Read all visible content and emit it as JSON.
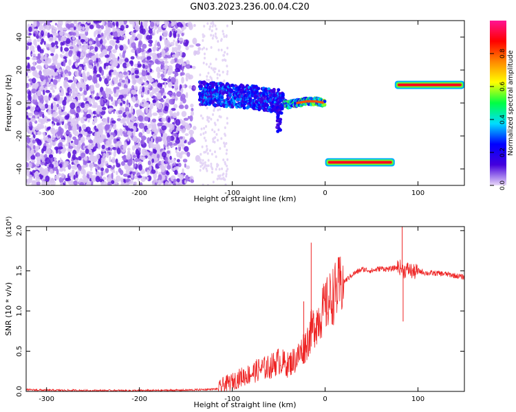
{
  "title": "GN03.2023.236.00.04.C20",
  "chart_data": [
    {
      "type": "heatmap",
      "xlabel": "Height of straight line (km)",
      "ylabel": "Frequency (Hz)",
      "xlim": [
        -322,
        150
      ],
      "ylim": [
        -50,
        50
      ],
      "xticks": [
        -300,
        -200,
        -100,
        0,
        100
      ],
      "yticks": [
        -40,
        -20,
        0,
        20,
        40
      ],
      "colorbar": {
        "label": "Normalized spectral amplitude",
        "range": [
          0,
          1
        ],
        "ticks": [
          0.0,
          0.2,
          0.4,
          0.6,
          0.8
        ],
        "tick_labels": [
          "0.0",
          "0.2",
          "0.4",
          "0.6",
          "0.8"
        ],
        "colormap": [
          "#e8d8f8",
          "#4400dd",
          "#0000ff",
          "#00ddff",
          "#00ff44",
          "#ffff00",
          "#ff8800",
          "#ff0000",
          "#ff1493"
        ]
      },
      "features": [
        {
          "name": "noise",
          "x_range": [
            -322,
            -135
          ],
          "freq_range": [
            -50,
            50
          ],
          "amplitude": 0.05
        },
        {
          "name": "main-trace",
          "points": [
            [
              -135,
              6
            ],
            [
              -110,
              5
            ],
            [
              -90,
              4
            ],
            [
              -70,
              3
            ],
            [
              -50,
              1
            ],
            [
              -40,
              -1
            ],
            [
              -30,
              0
            ],
            [
              -20,
              1
            ],
            [
              -10,
              1
            ],
            [
              0,
              0
            ]
          ],
          "amplitude": [
            0.1,
            0.6
          ]
        },
        {
          "name": "upper-band",
          "x_range": [
            75,
            150
          ],
          "freq": 11,
          "amplitude": 0.9
        },
        {
          "name": "lower-band",
          "x_range": [
            0,
            75
          ],
          "freq": -36,
          "amplitude": 0.9
        }
      ]
    },
    {
      "type": "line",
      "xlabel": "Height of straight line (km)",
      "ylabel": "SNR (10 * v/v)",
      "y_multiplier": "(x10⁴)",
      "xlim": [
        -322,
        150
      ],
      "ylim": [
        0,
        2.05
      ],
      "xticks": [
        -300,
        -200,
        -100,
        0,
        100
      ],
      "yticks": [
        0.0,
        0.5,
        1.0,
        1.5,
        2.0
      ],
      "ytick_labels": [
        "0.0",
        "0.5",
        "1.0",
        "1.5",
        "2.0"
      ],
      "color": "#ee2222",
      "series": [
        {
          "x": [
            -322,
            -300,
            -250,
            -200,
            -150,
            -115,
            -110,
            -100,
            -90,
            -80,
            -70,
            -60,
            -50,
            -40,
            -30,
            -20,
            -15,
            -10,
            0,
            10,
            20,
            30,
            40,
            50,
            60,
            70,
            80,
            85,
            90,
            95,
            100,
            110,
            120,
            130,
            140,
            150
          ],
          "y": [
            0.02,
            0.015,
            0.01,
            0.01,
            0.015,
            0.03,
            0.08,
            0.12,
            0.18,
            0.22,
            0.28,
            0.3,
            0.38,
            0.33,
            0.42,
            0.6,
            0.75,
            0.85,
            1.05,
            1.22,
            1.36,
            1.46,
            1.52,
            1.5,
            1.53,
            1.52,
            1.55,
            1.5,
            1.52,
            1.48,
            1.5,
            1.47,
            1.47,
            1.46,
            1.44,
            1.42
          ]
        }
      ],
      "spikes": [
        {
          "x": -15,
          "y": 1.85
        },
        {
          "x": -23,
          "y": 1.12
        },
        {
          "x": 83,
          "y": 2.08
        },
        {
          "x": 84,
          "y": 0.87
        }
      ]
    }
  ]
}
